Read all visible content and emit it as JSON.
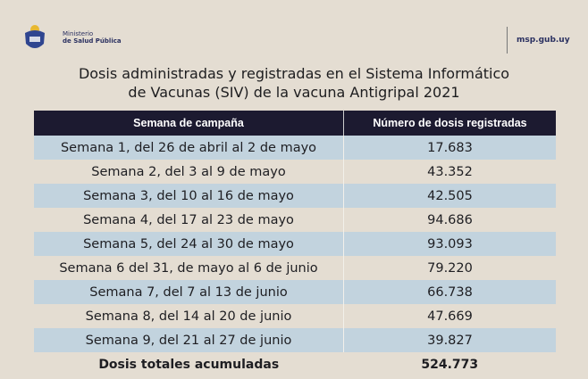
{
  "header": {
    "ministry_line1": "Ministerio",
    "ministry_line2": "de Salud Pública",
    "url": "msp.gub.uy"
  },
  "title": {
    "line1": "Dosis administradas y registradas en el Sistema Informático",
    "line2": "de Vacunas (SIV) de la vacuna Antigripal 2021"
  },
  "table": {
    "columns": [
      "Semana de campaña",
      "Número de dosis registradas"
    ],
    "rows": [
      [
        "Semana 1, del 26 de abril al 2 de mayo",
        "17.683"
      ],
      [
        "Semana 2, del 3 al 9 de mayo",
        "43.352"
      ],
      [
        "Semana 3, del 10 al 16 de mayo",
        "42.505"
      ],
      [
        "Semana 4, del 17 al 23 de mayo",
        "94.686"
      ],
      [
        "Semana 5, del 24 al 30 de mayo",
        "93.093"
      ],
      [
        "Semana 6 del 31, de mayo al 6 de junio",
        "79.220"
      ],
      [
        "Semana 7, del 7 al 13 de junio",
        "66.738"
      ],
      [
        "Semana 8, del 14 al 20 de junio",
        "47.669"
      ],
      [
        "Semana 9, del 21 al 27 de junio",
        "39.827"
      ]
    ],
    "total": [
      "Dosis totales acumuladas",
      "524.773"
    ]
  },
  "colors": {
    "header_bg": "#1c1a30",
    "stripe": "#c2d3de",
    "paper": "#e4ddd2"
  }
}
